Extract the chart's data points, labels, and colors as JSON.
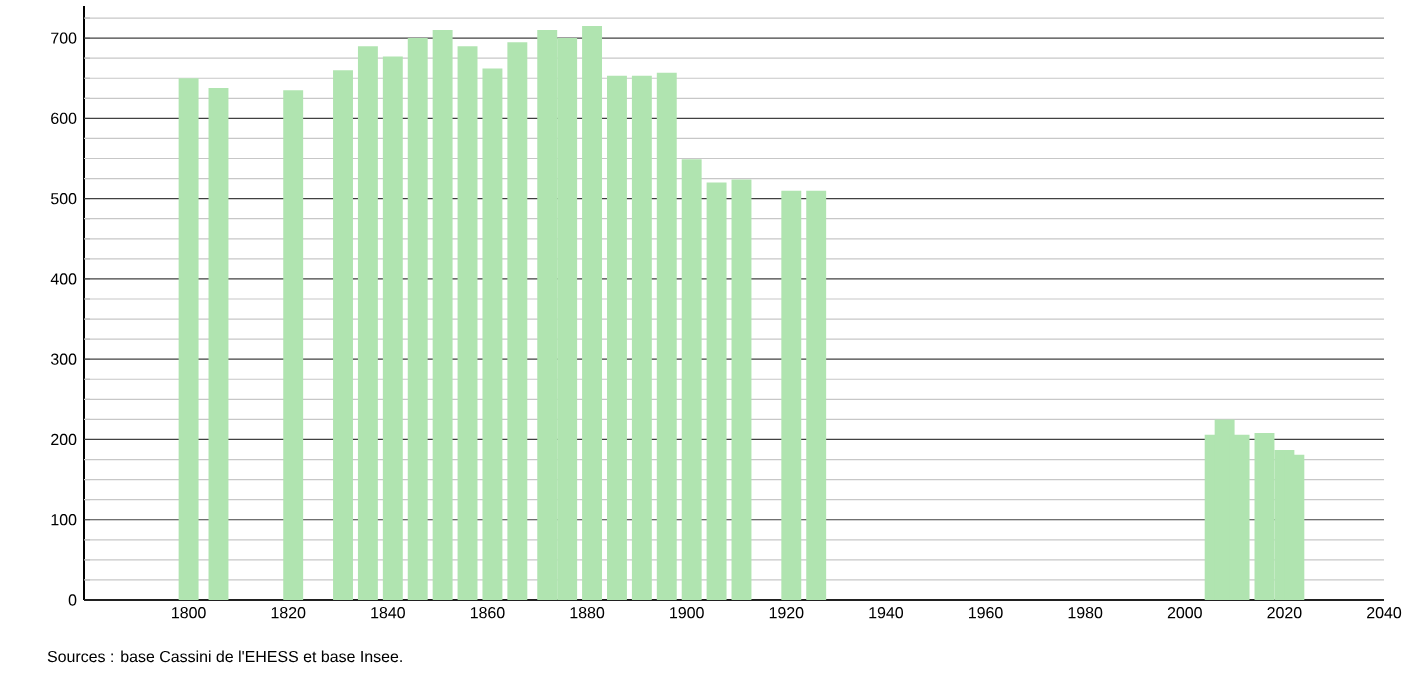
{
  "chart_data": {
    "type": "bar",
    "color": "#b0e4b0",
    "x": [
      1800,
      1806,
      1821,
      1831,
      1836,
      1841,
      1846,
      1851,
      1856,
      1861,
      1866,
      1872,
      1876,
      1881,
      1886,
      1891,
      1896,
      1901,
      1906,
      1911,
      1921,
      1926,
      2006,
      2008,
      2011,
      2016,
      2020,
      2022
    ],
    "values": [
      650,
      638,
      635,
      660,
      690,
      677,
      700,
      710,
      690,
      662,
      695,
      710,
      700,
      715,
      653,
      653,
      657,
      549,
      520,
      524,
      510,
      510,
      206,
      225,
      206,
      208,
      187,
      181
    ],
    "xlim": [
      1779,
      2040
    ],
    "xticks": [
      1800,
      1820,
      1840,
      1860,
      1880,
      1900,
      1920,
      1940,
      1960,
      1980,
      2000,
      2020,
      2040
    ],
    "ylim": [
      0,
      740
    ],
    "yticks": [
      0,
      {
        "value": 25,
        "label": null
      },
      {
        "value": 50,
        "label": null
      },
      {
        "value": 75,
        "label": null
      },
      100,
      {
        "value": 125,
        "label": null
      },
      {
        "value": 150,
        "label": null
      },
      {
        "value": 175,
        "label": null
      },
      200,
      {
        "value": 225,
        "label": null
      },
      {
        "value": 250,
        "label": null
      },
      {
        "value": 275,
        "label": null
      },
      300,
      {
        "value": 325,
        "label": null
      },
      {
        "value": 350,
        "label": null
      },
      {
        "value": 375,
        "label": null
      },
      400,
      {
        "value": 425,
        "label": null
      },
      {
        "value": 450,
        "label": null
      },
      {
        "value": 475,
        "label": null
      },
      500,
      {
        "value": 525,
        "label": null
      },
      {
        "value": 550,
        "label": null
      },
      {
        "value": 575,
        "label": null
      },
      600,
      {
        "value": 625,
        "label": null
      },
      {
        "value": 650,
        "label": null
      },
      {
        "value": 675,
        "label": null
      },
      700,
      {
        "value": 725,
        "label": null
      }
    ],
    "grid": "y",
    "annotations": [
      "Sources : base Cassini de l'EHESS et base Insee."
    ]
  }
}
